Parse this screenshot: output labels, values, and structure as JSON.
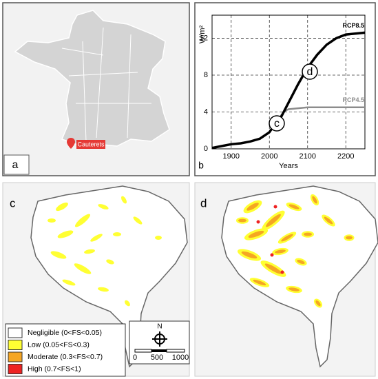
{
  "panels": {
    "a": {
      "label": "a",
      "marker_label": "Cauterets"
    },
    "b": {
      "label": "b"
    },
    "c": {
      "label": "c"
    },
    "d": {
      "label": "d"
    }
  },
  "chart_data": {
    "type": "line",
    "xlabel": "Years",
    "ylabel": "W/m²",
    "x": [
      1850,
      1875,
      1900,
      1925,
      1950,
      1975,
      2000,
      2010,
      2020,
      2030,
      2040,
      2050,
      2075,
      2100,
      2125,
      2150,
      2175,
      2200,
      2225,
      2250
    ],
    "series": [
      {
        "name": "RCP8.5",
        "color": "#000000",
        "values": [
          0.1,
          0.3,
          0.5,
          0.6,
          0.8,
          1.1,
          1.8,
          2.4,
          2.9,
          3.4,
          4.2,
          5,
          7,
          8.8,
          10.2,
          11.3,
          12,
          12.4,
          12.5,
          12.6
        ]
      },
      {
        "name": "RCP4.5",
        "color": "#8c8c8c",
        "values": [
          0.1,
          0.3,
          0.5,
          0.6,
          0.8,
          1.1,
          1.8,
          2.4,
          2.9,
          3.6,
          4.1,
          4.3,
          4.4,
          4.5,
          4.5,
          4.5,
          4.5,
          4.5,
          4.5,
          4.5
        ]
      }
    ],
    "annotations": [
      "c",
      "d"
    ],
    "xlim": [
      1850,
      2250
    ],
    "xticks": [
      1900,
      2000,
      2100,
      2200
    ],
    "ylim": [
      0,
      14.5
    ],
    "yticks": [
      0,
      4,
      8,
      12
    ],
    "grid": true
  },
  "legend": {
    "items": [
      {
        "label": "Negligible (0<FS<0.05)",
        "color": "#ffffff"
      },
      {
        "label": "Low (0.05<FS<0.3)",
        "color": "#ffff33"
      },
      {
        "label": "Moderate (0.3<FS<0.7)",
        "color": "#f5a623"
      },
      {
        "label": "High (0.7<FS<1)",
        "color": "#ee2222"
      }
    ]
  },
  "scale_bar": {
    "north": "N",
    "ticks": [
      0,
      500,
      1000
    ]
  }
}
